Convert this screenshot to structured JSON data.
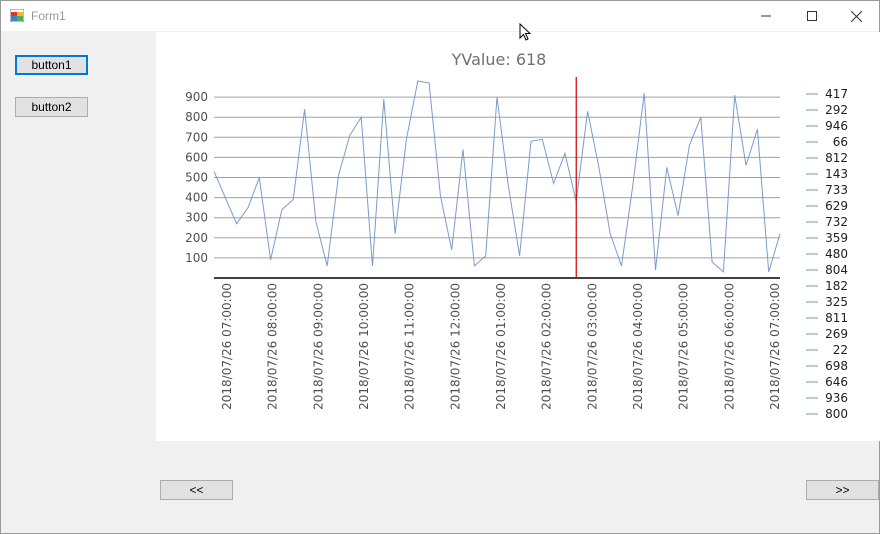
{
  "window": {
    "title": "Form1"
  },
  "buttons": {
    "button1": "button1",
    "button2": "button2",
    "prev": "<<",
    "next": ">>"
  },
  "chart_data": {
    "type": "line",
    "title": "YValue: 618",
    "yticks": [
      100,
      200,
      300,
      400,
      500,
      600,
      700,
      800,
      900
    ],
    "ylim": [
      0,
      1000
    ],
    "xlabels": [
      "2018/07/26 07:00:00",
      "2018/07/26 08:00:00",
      "2018/07/26 09:00:00",
      "2018/07/26 10:00:00",
      "2018/07/26 11:00:00",
      "2018/07/26 12:00:00",
      "2018/07/26 01:00:00",
      "2018/07/26 02:00:00",
      "2018/07/26 03:00:00",
      "2018/07/26 04:00:00",
      "2018/07/26 05:00:00",
      "2018/07/26 06:00:00",
      "2018/07/26 07:00:00"
    ],
    "values": [
      530,
      400,
      270,
      350,
      500,
      90,
      340,
      390,
      840,
      280,
      60,
      510,
      710,
      800,
      60,
      890,
      220,
      690,
      980,
      970,
      410,
      140,
      640,
      60,
      110,
      900,
      460,
      110,
      680,
      690,
      470,
      620,
      380,
      830,
      550,
      220,
      60,
      460,
      920,
      40,
      550,
      310,
      660,
      800,
      80,
      30,
      910,
      560,
      740,
      30,
      220
    ],
    "cursor_index": 32,
    "legend": [
      "417",
      "292",
      "946",
      "66",
      "812",
      "143",
      "733",
      "629",
      "732",
      "359",
      "480",
      "804",
      "182",
      "325",
      "811",
      "269",
      "22",
      "698",
      "646",
      "936",
      "800"
    ],
    "series_color": "#7b9cc9",
    "cursor_color": "#cc0000"
  }
}
